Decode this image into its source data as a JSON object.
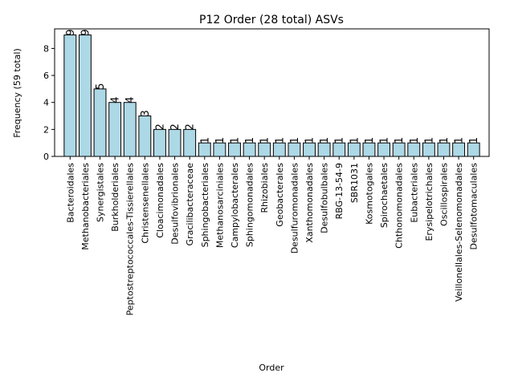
{
  "chart_data": {
    "type": "bar",
    "title": "P12 Order (28 total) ASVs",
    "xlabel": "Order",
    "ylabel": "Frequency (59 total)",
    "ylim": [
      0,
      9.45
    ],
    "yticks": [
      0,
      2,
      4,
      6,
      8
    ],
    "grid": false,
    "categories": [
      "Bacteroidales",
      "Methanobacteriales",
      "Synergistales",
      "Burkholderiales",
      "Peptostreptococcales-Tissierellales",
      "Christensenellales",
      "Cloacimonadales",
      "Desulfovibrionales",
      "Gracilibacteraceae",
      "Sphingobacteriales",
      "Methanosarciniales",
      "Campylobacterales",
      "Sphingomonadales",
      "Rhizobiales",
      "Geobacterales",
      "Desulfuromonadales",
      "Xanthomonadales",
      "Desulfobulbales",
      "RBG-13-54-9",
      "SBR1031",
      "Kosmotogales",
      "Spirochaetales",
      "Chthonomonadales",
      "Eubacteriales",
      "Erysipelotrichales",
      "Oscillospirales",
      "Veillonellales-Selenomonadales",
      "Desulfotomaculales"
    ],
    "values": [
      9,
      9,
      5,
      4,
      4,
      3,
      2,
      2,
      2,
      1,
      1,
      1,
      1,
      1,
      1,
      1,
      1,
      1,
      1,
      1,
      1,
      1,
      1,
      1,
      1,
      1,
      1,
      1
    ],
    "bar_color": "#add8e6"
  }
}
